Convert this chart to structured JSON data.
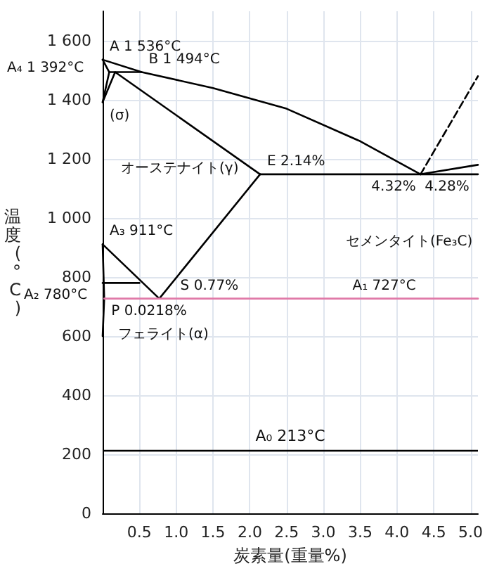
{
  "chart_data": {
    "type": "line",
    "xlabel": "炭素量(重量%)",
    "ylabel": "温度(°C)",
    "xlim": [
      0,
      5.1
    ],
    "ylim": [
      0,
      1700
    ],
    "xticks": [
      {
        "value": 0.5,
        "label": "0.5"
      },
      {
        "value": 1,
        "label": "1.0"
      },
      {
        "value": 1.5,
        "label": "1.5"
      },
      {
        "value": 2,
        "label": "2.0"
      },
      {
        "value": 2.5,
        "label": "2.5"
      },
      {
        "value": 3,
        "label": "3.0"
      },
      {
        "value": 3.5,
        "label": "3.5"
      },
      {
        "value": 4,
        "label": "4.0"
      },
      {
        "value": 4.5,
        "label": "4.5"
      },
      {
        "value": 5,
        "label": "5.0"
      }
    ],
    "yticks": [
      0,
      200,
      400,
      600,
      800,
      {
        "value": 1000,
        "label": "1 000"
      },
      {
        "value": 1200,
        "label": "1 200"
      },
      {
        "value": 1400,
        "label": "1 400"
      },
      {
        "value": 1600,
        "label": "1 600"
      }
    ],
    "grid": true,
    "marker": "none",
    "line_style": "solid",
    "series": [
      {
        "color": "#000000",
        "x": [
          0,
          0.53,
          1.5,
          2.5,
          3.5,
          4.32
        ],
        "values": [
          1536,
          1494,
          1440,
          1370,
          1260,
          1148
        ]
      },
      {
        "color": "#000000",
        "x": [
          0,
          0.09,
          0.53
        ],
        "values": [
          1536,
          1494,
          1494
        ]
      },
      {
        "color": "#000000",
        "x": [
          0,
          0.09
        ],
        "values": [
          1392,
          1494
        ]
      },
      {
        "color": "#000000",
        "x": [
          0,
          0.17,
          2.14
        ],
        "values": [
          1392,
          1494,
          1148
        ]
      },
      {
        "color": "#000000",
        "x": [
          2.14,
          0.77
        ],
        "values": [
          1148,
          727
        ]
      },
      {
        "color": "#000000",
        "x": [
          0,
          0.77
        ],
        "values": [
          911,
          727
        ]
      },
      {
        "color": "#000000",
        "x": [
          0,
          0.0218,
          0
        ],
        "values": [
          911,
          727,
          600
        ]
      },
      {
        "color": "#000000",
        "x": [
          0,
          0.5
        ],
        "values": [
          780,
          780
        ]
      },
      {
        "color": "#000000",
        "x": [
          2.14,
          5.1
        ],
        "values": [
          1148,
          1148
        ]
      },
      {
        "color": "#000000",
        "x": [
          4.32,
          5.1
        ],
        "values": [
          1148,
          1180
        ]
      },
      {
        "color": "#000000",
        "x": [
          4.32,
          5.1
        ],
        "values": [
          1148,
          1480
        ],
        "line_style": "dashed"
      },
      {
        "color": "#e07aa8",
        "x": [
          0.0218,
          5.1
        ],
        "values": [
          727,
          727
        ]
      }
    ],
    "ref_lines": [
      {
        "axis": "y",
        "value": 213,
        "label": "A₀ 213°C",
        "color": "#000000"
      }
    ],
    "annotations": [
      {
        "text": "A 1 536°C",
        "x": 0,
        "y": 1536
      },
      {
        "text": "B 1 494°C",
        "x": 0.53,
        "y": 1494
      },
      {
        "text": "A₄ 1 392°C",
        "x": 0,
        "y": 1392
      },
      {
        "text": "(σ)",
        "x": 0,
        "y": 1460
      },
      {
        "text": "4.28%",
        "x": 4.28,
        "y": 1148
      },
      {
        "text": "4.32%",
        "x": 4.32,
        "y": 1148
      },
      {
        "text": "E 2.14%",
        "x": 2.14,
        "y": 1148
      },
      "オーステナイト(γ)",
      "セメンタイト(Fe₃C)",
      {
        "text": "A₃ 911°C",
        "x": 0,
        "y": 911
      },
      {
        "text": "P 0.0218%",
        "x": 0.0218,
        "y": 727
      },
      {
        "text": "S 0.77%",
        "x": 0.77,
        "y": 727
      },
      {
        "text": "A₂ 780°C",
        "x": 0,
        "y": 780
      },
      {
        "text": "A₁ 727°C",
        "x": 3.3,
        "y": 727
      },
      "フェライト(α)"
    ]
  }
}
